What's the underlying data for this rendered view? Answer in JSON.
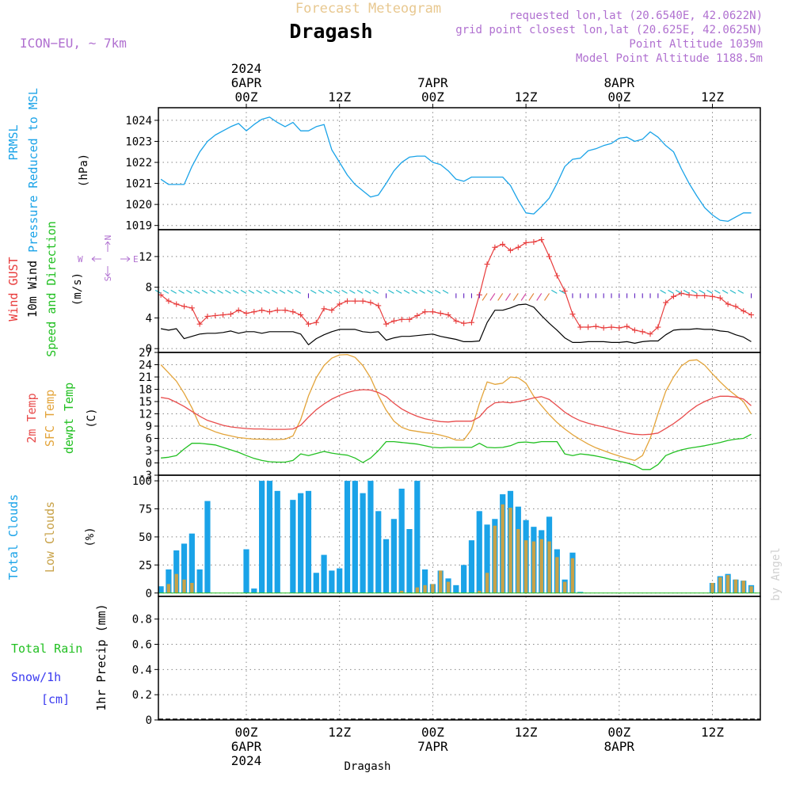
{
  "header": {
    "supertitle": "Forecast Meteogram",
    "title": "Dragash",
    "model": "ICON−EU, ~ 7km",
    "requested": "requested lon,lat (20.6540E, 42.0622N)",
    "gridpoint": "grid point closest lon,lat (20.625E, 42.0625N)",
    "point_alt": "Point Altitude 1039m",
    "model_alt": "Model Point Altitude 1188.5m",
    "footer": "Dragash",
    "credit": "by Angel"
  },
  "colors": {
    "pressure": "#1aa3e8",
    "gust": "#e83c3c",
    "wind": "#000000",
    "temp2m": "#e84c4c",
    "sfctemp": "#e3a43a",
    "dewpt": "#22c022",
    "total_clouds": "#1aa3e8",
    "low_clouds": "#c8a248",
    "rain_label": "#22c022",
    "snow_label": "#3a3af0",
    "model_label": "#b070d0",
    "grid": "#888888",
    "supertitle": "#e8c890",
    "compass": "#b070d0",
    "credit": "#d0d0d0"
  },
  "axes": {
    "time_top": [
      {
        "line1": "2024",
        "line2": "6APR",
        "line3": "00Z",
        "hour": 0
      },
      {
        "line1": "",
        "line2": "",
        "line3": "12Z",
        "hour": 12
      },
      {
        "line1": "",
        "line2": "7APR",
        "line3": "00Z",
        "hour": 24
      },
      {
        "line1": "",
        "line2": "",
        "line3": "12Z",
        "hour": 36
      },
      {
        "line1": "",
        "line2": "8APR",
        "line3": "00Z",
        "hour": 48
      },
      {
        "line1": "",
        "line2": "",
        "line3": "12Z",
        "hour": 60
      }
    ],
    "time_bottom": [
      {
        "line1": "00Z",
        "line2": "6APR",
        "line3": "2024",
        "hour": 0
      },
      {
        "line1": "12Z",
        "line2": "",
        "line3": "",
        "hour": 12
      },
      {
        "line1": "00Z",
        "line2": "7APR",
        "line3": "",
        "hour": 24
      },
      {
        "line1": "12Z",
        "line2": "",
        "line3": "",
        "hour": 36
      },
      {
        "line1": "00Z",
        "line2": "8APR",
        "line3": "",
        "hour": 48
      },
      {
        "line1": "12Z",
        "line2": "",
        "line3": "",
        "hour": 60
      }
    ]
  },
  "chart_data": [
    {
      "type": "line",
      "panel": "pressure",
      "label_lines": [
        "PRMSL",
        "Pressure Reduced to MSL"
      ],
      "unit": "(hPa)",
      "ylim": [
        1018.8,
        1024.6
      ],
      "yticks": [
        1019,
        1020,
        1021,
        1022,
        1023,
        1024
      ],
      "x": [
        -11,
        -10,
        -9,
        -8,
        -7,
        -6,
        -5,
        -4,
        -3,
        -2,
        -1,
        0,
        1,
        2,
        3,
        4,
        5,
        6,
        7,
        8,
        9,
        10,
        11,
        12,
        13,
        14,
        15,
        16,
        17,
        18,
        19,
        20,
        21,
        22,
        23,
        24,
        25,
        26,
        27,
        28,
        29,
        30,
        31,
        32,
        33,
        34,
        35,
        36,
        37,
        38,
        39,
        40,
        41,
        42,
        43,
        44,
        45,
        46,
        47,
        48,
        49,
        50,
        51,
        52,
        53,
        54,
        55,
        56,
        57,
        58,
        59,
        60,
        61,
        62,
        63,
        64,
        65
      ],
      "series": [
        {
          "values": [
            1021.2,
            1020.95,
            1020.95,
            1020.95,
            1021.8,
            1022.5,
            1023.0,
            1023.3,
            1023.5,
            1023.7,
            1023.85,
            1023.5,
            1023.8,
            1024.05,
            1024.15,
            1023.9,
            1023.7,
            1023.9,
            1023.5,
            1023.5,
            1023.7,
            1023.8,
            1022.6,
            1022.0,
            1021.4,
            1020.95,
            1020.65,
            1020.35,
            1020.45,
            1021.0,
            1021.6,
            1022.0,
            1022.25,
            1022.3,
            1022.3,
            1022.0,
            1021.9,
            1021.6,
            1021.2,
            1021.1,
            1021.3,
            1021.3,
            1021.3,
            1021.3,
            1021.3,
            1020.9,
            1020.2,
            1019.6,
            1019.55,
            1019.9,
            1020.3,
            1021.0,
            1021.8,
            1022.15,
            1022.2,
            1022.55,
            1022.65,
            1022.8,
            1022.9,
            1023.15,
            1023.2,
            1023.0,
            1023.1,
            1023.45,
            1023.2,
            1022.8,
            1022.5,
            1021.7,
            1021.0,
            1020.4,
            1019.85,
            1019.5,
            1019.25,
            1019.2,
            1019.4,
            1019.6,
            1019.6
          ]
        }
      ]
    },
    {
      "type": "line",
      "panel": "wind",
      "label_lines": [
        "Wind GUST",
        "10m Wind",
        "Speed and Direction"
      ],
      "unit": "(m/s)",
      "ylim": [
        -0.5,
        15.5
      ],
      "yticks": [
        0,
        4,
        8,
        12
      ],
      "compass": {
        "n": "N",
        "s": "S",
        "w": "W",
        "e": "E"
      },
      "x": [
        -11,
        -10,
        -9,
        -8,
        -7,
        -6,
        -5,
        -4,
        -3,
        -2,
        -1,
        0,
        1,
        2,
        3,
        4,
        5,
        6,
        7,
        8,
        9,
        10,
        11,
        12,
        13,
        14,
        15,
        16,
        17,
        18,
        19,
        20,
        21,
        22,
        23,
        24,
        25,
        26,
        27,
        28,
        29,
        30,
        31,
        32,
        33,
        34,
        35,
        36,
        37,
        38,
        39,
        40,
        41,
        42,
        43,
        44,
        45,
        46,
        47,
        48,
        49,
        50,
        51,
        52,
        53,
        54,
        55,
        56,
        57,
        58,
        59,
        60,
        61,
        62,
        63,
        64,
        65
      ],
      "series": [
        {
          "name": "Wind GUST",
          "values": [
            7.0,
            6.2,
            5.8,
            5.5,
            5.3,
            3.2,
            4.2,
            4.3,
            4.4,
            4.5,
            5.0,
            4.6,
            4.8,
            5.0,
            4.8,
            5.0,
            5.0,
            4.8,
            4.4,
            3.2,
            3.4,
            5.2,
            5.0,
            5.8,
            6.2,
            6.2,
            6.2,
            6.0,
            5.6,
            3.2,
            3.6,
            3.8,
            3.8,
            4.3,
            4.8,
            4.8,
            4.6,
            4.4,
            3.6,
            3.3,
            3.4,
            7.0,
            11.0,
            13.2,
            13.6,
            12.8,
            13.2,
            13.8,
            13.9,
            14.2,
            12.0,
            9.5,
            7.5,
            4.5,
            2.8,
            2.8,
            2.9,
            2.7,
            2.8,
            2.7,
            2.9,
            2.4,
            2.2,
            1.9,
            2.8,
            6.0,
            6.8,
            7.2,
            7.0,
            6.9,
            6.9,
            6.8,
            6.6,
            5.8,
            5.5,
            4.9,
            4.4
          ]
        },
        {
          "name": "10m Wind",
          "values": [
            2.6,
            2.4,
            2.6,
            1.3,
            1.6,
            1.9,
            2.0,
            2.0,
            2.1,
            2.3,
            2.0,
            2.2,
            2.2,
            2.0,
            2.2,
            2.2,
            2.2,
            2.2,
            1.9,
            0.5,
            1.3,
            1.8,
            2.2,
            2.5,
            2.5,
            2.5,
            2.2,
            2.1,
            2.2,
            1.1,
            1.4,
            1.6,
            1.6,
            1.7,
            1.8,
            1.9,
            1.6,
            1.4,
            1.2,
            0.9,
            0.9,
            1.0,
            3.4,
            5.0,
            5.0,
            5.3,
            5.7,
            5.8,
            5.4,
            4.3,
            3.3,
            2.4,
            1.4,
            0.8,
            0.8,
            0.9,
            0.9,
            0.9,
            0.8,
            0.8,
            0.9,
            0.7,
            0.9,
            1.0,
            1.0,
            1.8,
            2.4,
            2.5,
            2.5,
            2.6,
            2.5,
            2.5,
            2.3,
            2.2,
            1.8,
            1.5,
            0.9
          ]
        }
      ]
    },
    {
      "type": "line",
      "panel": "temperature",
      "label_lines": [
        "2m Temp",
        "SFC Temp",
        "dewpt Temp"
      ],
      "unit": "(C)",
      "ylim": [
        -3,
        27
      ],
      "yticks": [
        -3,
        0,
        3,
        6,
        9,
        12,
        15,
        18,
        21,
        24,
        27
      ],
      "x": [
        -11,
        -10,
        -9,
        -8,
        -7,
        -6,
        -5,
        -4,
        -3,
        -2,
        -1,
        0,
        1,
        2,
        3,
        4,
        5,
        6,
        7,
        8,
        9,
        10,
        11,
        12,
        13,
        14,
        15,
        16,
        17,
        18,
        19,
        20,
        21,
        22,
        23,
        24,
        25,
        26,
        27,
        28,
        29,
        30,
        31,
        32,
        33,
        34,
        35,
        36,
        37,
        38,
        39,
        40,
        41,
        42,
        43,
        44,
        45,
        46,
        47,
        48,
        49,
        50,
        51,
        52,
        53,
        54,
        55,
        56,
        57,
        58,
        59,
        60,
        61,
        62,
        63,
        64,
        65
      ],
      "series": [
        {
          "name": "2m Temp",
          "values": [
            16.0,
            15.7,
            14.8,
            13.8,
            12.6,
            11.4,
            10.4,
            9.8,
            9.2,
            8.8,
            8.6,
            8.4,
            8.3,
            8.3,
            8.2,
            8.2,
            8.2,
            8.3,
            9.2,
            11.2,
            13.0,
            14.4,
            15.6,
            16.5,
            17.2,
            17.7,
            17.9,
            17.8,
            17.2,
            16.2,
            14.6,
            13.2,
            12.2,
            11.4,
            10.8,
            10.4,
            10.1,
            10.0,
            10.2,
            10.2,
            10.2,
            11.2,
            13.4,
            14.7,
            14.9,
            14.7,
            15.0,
            15.4,
            15.9,
            16.2,
            15.5,
            14.0,
            12.4,
            11.2,
            10.3,
            9.7,
            9.2,
            8.8,
            8.3,
            7.8,
            7.3,
            7.0,
            6.9,
            7.0,
            7.3,
            8.4,
            9.6,
            11.0,
            12.6,
            14.0,
            15.0,
            15.8,
            16.3,
            16.3,
            16.1,
            15.6,
            14.0
          ]
        },
        {
          "name": "SFC Temp",
          "values": [
            24.0,
            22.0,
            20.0,
            17.0,
            13.5,
            9.2,
            8.4,
            7.6,
            7.0,
            6.6,
            6.2,
            6.0,
            5.8,
            5.8,
            5.7,
            5.7,
            5.8,
            6.6,
            10.6,
            16.4,
            20.8,
            23.8,
            25.6,
            26.4,
            26.5,
            25.8,
            23.8,
            20.8,
            16.5,
            12.9,
            10.2,
            8.7,
            8.0,
            7.7,
            7.4,
            7.2,
            6.8,
            6.3,
            5.6,
            5.6,
            8.2,
            14.5,
            19.8,
            19.2,
            19.5,
            21.0,
            20.8,
            19.5,
            16.3,
            14.0,
            11.8,
            9.9,
            8.3,
            6.9,
            5.7,
            4.6,
            3.7,
            3.0,
            2.3,
            1.7,
            1.1,
            0.6,
            1.8,
            6.0,
            12.0,
            17.5,
            21.0,
            23.7,
            25.0,
            25.2,
            23.9,
            21.8,
            19.8,
            18.0,
            16.5,
            15.0,
            12.0
          ]
        },
        {
          "name": "dewpt Temp",
          "values": [
            1.2,
            1.4,
            1.8,
            3.4,
            4.8,
            4.8,
            4.6,
            4.4,
            3.8,
            3.2,
            2.6,
            1.8,
            1.1,
            0.6,
            0.3,
            0.2,
            0.2,
            0.6,
            2.2,
            1.8,
            2.3,
            2.8,
            2.4,
            2.1,
            1.9,
            1.2,
            0.1,
            1.2,
            3.0,
            5.2,
            5.2,
            5.0,
            4.8,
            4.6,
            4.2,
            3.8,
            3.7,
            3.8,
            3.8,
            3.8,
            3.8,
            4.8,
            3.8,
            3.7,
            3.8,
            4.2,
            5.0,
            5.1,
            4.9,
            5.2,
            5.2,
            5.2,
            2.2,
            1.8,
            2.2,
            2.0,
            1.7,
            1.3,
            0.8,
            0.4,
            0.0,
            -0.6,
            -1.6,
            -1.6,
            -0.4,
            1.8,
            2.6,
            3.2,
            3.6,
            3.9,
            4.2,
            4.6,
            5.0,
            5.5,
            5.8,
            6.0,
            7.0
          ]
        }
      ]
    },
    {
      "type": "bar",
      "panel": "clouds",
      "label_lines": [
        "Total Clouds",
        "Low Clouds"
      ],
      "unit": "(%)",
      "ylim": [
        -3,
        105
      ],
      "yticks": [
        0,
        25,
        50,
        75,
        100
      ],
      "x": [
        -11,
        -10,
        -9,
        -8,
        -7,
        -6,
        -5,
        -4,
        -3,
        -2,
        -1,
        0,
        1,
        2,
        3,
        4,
        5,
        6,
        7,
        8,
        9,
        10,
        11,
        12,
        13,
        14,
        15,
        16,
        17,
        18,
        19,
        20,
        21,
        22,
        23,
        24,
        25,
        26,
        27,
        28,
        29,
        30,
        31,
        32,
        33,
        34,
        35,
        36,
        37,
        38,
        39,
        40,
        41,
        42,
        43,
        44,
        45,
        46,
        47,
        48,
        49,
        50,
        51,
        52,
        53,
        54,
        55,
        56,
        57,
        58,
        59,
        60,
        61,
        62,
        63,
        64,
        65
      ],
      "series": [
        {
          "name": "Total Clouds",
          "values": [
            6,
            21,
            38,
            44,
            53,
            21,
            82,
            0,
            0,
            0,
            0,
            39,
            4,
            100,
            100,
            91,
            0,
            83,
            89,
            91,
            18,
            34,
            20,
            22,
            100,
            100,
            89,
            100,
            73,
            48,
            66,
            93,
            57,
            100,
            21,
            8,
            20,
            13,
            7,
            25,
            47,
            73,
            61,
            66,
            88,
            91,
            77,
            65,
            59,
            56,
            68,
            39,
            12,
            36,
            1,
            0,
            0,
            0,
            0,
            0,
            0,
            0,
            0,
            0,
            0,
            0,
            0,
            0,
            0,
            0,
            0,
            9,
            15,
            17,
            12,
            11,
            7
          ]
        },
        {
          "name": "Low Clouds",
          "values": [
            0,
            8,
            17,
            12,
            9,
            0,
            0,
            0,
            0,
            0,
            0,
            0,
            0,
            0,
            0,
            0,
            0,
            0,
            0,
            0,
            0,
            0,
            0,
            0,
            0,
            0,
            0,
            0,
            0,
            0,
            0,
            2,
            0,
            5,
            7,
            8,
            20,
            10,
            0,
            0,
            0,
            2,
            18,
            60,
            79,
            76,
            57,
            47,
            46,
            48,
            46,
            32,
            10,
            31,
            0,
            0,
            0,
            0,
            0,
            0,
            0,
            0,
            0,
            0,
            0,
            0,
            0,
            0,
            0,
            0,
            0,
            9,
            14,
            16,
            12,
            11,
            6
          ]
        }
      ]
    },
    {
      "type": "line",
      "panel": "precip",
      "label_lines": [
        "1hr Precip (mm)"
      ],
      "left_labels": [
        {
          "text": "Total Rain",
          "color": "rain"
        },
        {
          "text": "Snow/1h",
          "color": "snow"
        },
        {
          "text": "[cm]",
          "color": "snow"
        }
      ],
      "ylim": [
        0,
        0.98
      ],
      "yticks": [
        0,
        0.2,
        0.4,
        0.6,
        0.8
      ],
      "ytick_labels": [
        "0",
        "0.2",
        "0.4",
        "0.6",
        "0.8"
      ],
      "series": [
        {
          "name": "1hr Precip",
          "values": [
            0,
            0
          ]
        }
      ]
    }
  ]
}
